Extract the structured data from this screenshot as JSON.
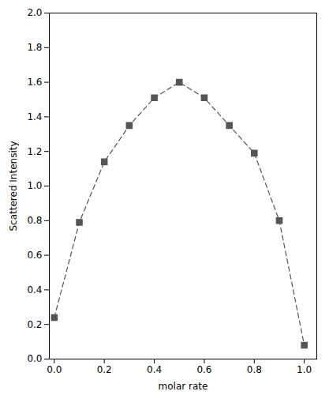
{
  "chart_data": {
    "type": "line",
    "xlabel": "molar rate",
    "ylabel": "Scattered Intensity",
    "x": [
      0.0,
      0.1,
      0.2,
      0.3,
      0.4,
      0.5,
      0.6,
      0.7,
      0.8,
      0.9,
      1.0
    ],
    "values": [
      0.24,
      0.79,
      1.14,
      1.35,
      1.51,
      1.6,
      1.51,
      1.35,
      1.19,
      0.8,
      0.08
    ],
    "xlim": [
      -0.02,
      1.05
    ],
    "ylim": [
      0.0,
      2.0
    ],
    "xticks": [
      {
        "value": 0.0,
        "label": "0.0"
      },
      0.2,
      0.4,
      0.6,
      0.8,
      {
        "value": 1.0,
        "label": "1.0"
      }
    ],
    "yticks": [
      {
        "value": 0.0,
        "label": "0.0"
      },
      0.2,
      0.4,
      0.6,
      0.8,
      {
        "value": 1.0,
        "label": "1.0"
      },
      1.2,
      1.4,
      1.6,
      1.8,
      {
        "value": 2.0,
        "label": "2.0"
      }
    ],
    "color": "#555555",
    "marker": "square",
    "line_style": "dashed"
  }
}
